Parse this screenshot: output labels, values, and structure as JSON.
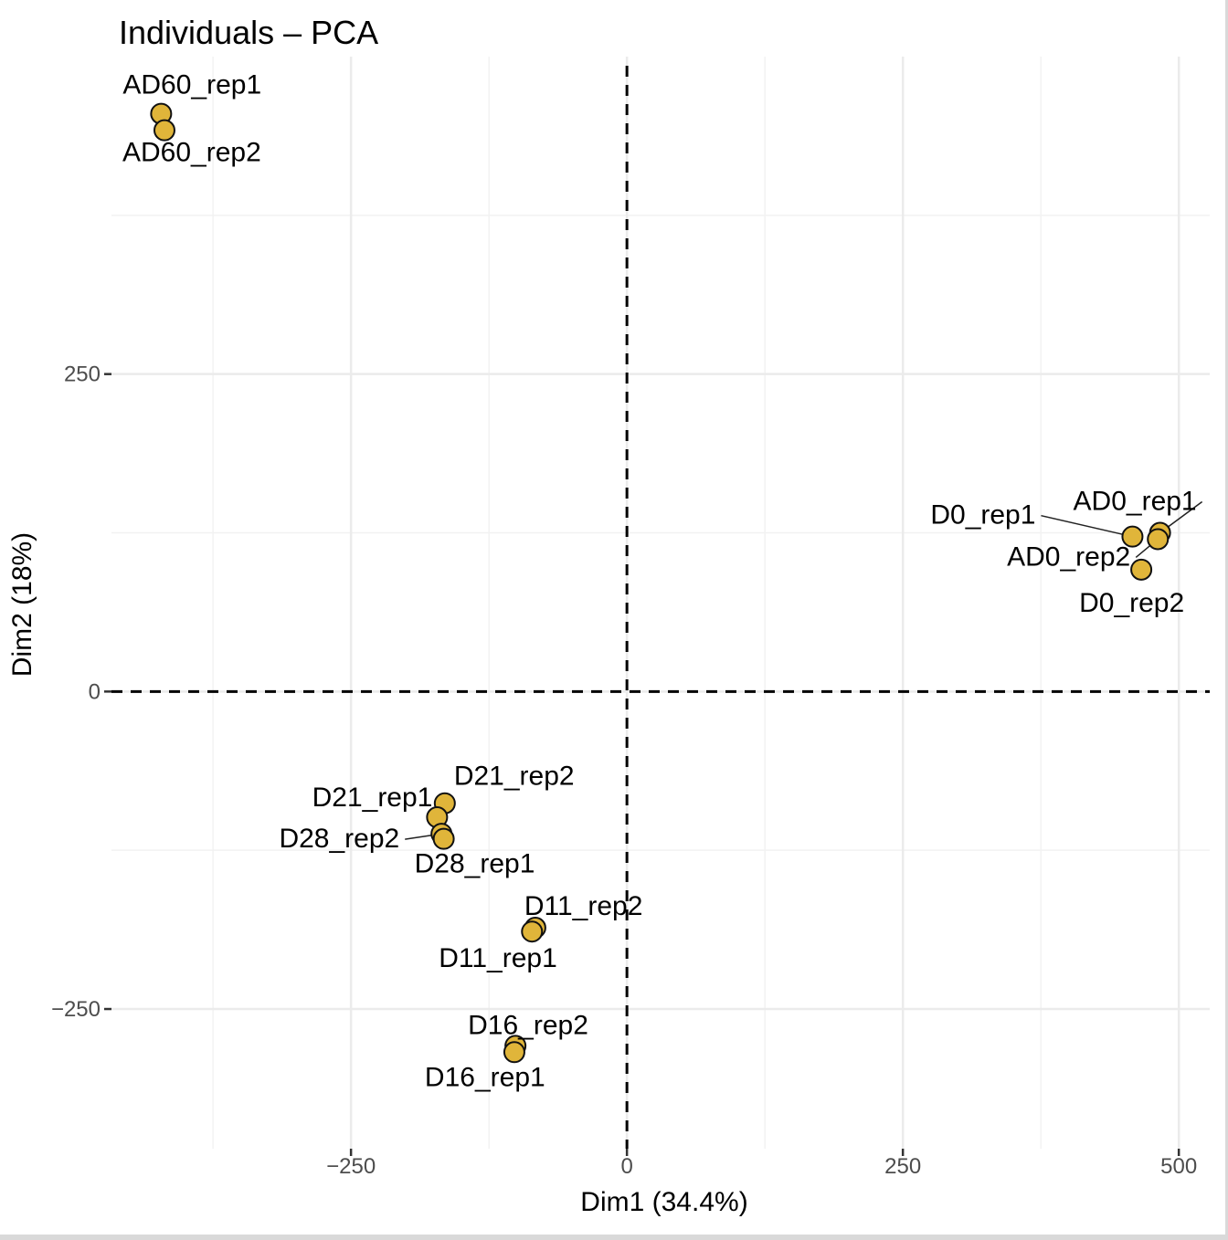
{
  "chart_data": {
    "type": "scatter",
    "title": "Individuals – PCA",
    "xlabel": "Dim1 (34.4%)",
    "ylabel": "Dim2 (18%)",
    "xlim": [
      -467,
      528
    ],
    "ylim": [
      -360,
      500
    ],
    "x_ticks": [
      {
        "value": -250,
        "label": "−250"
      },
      {
        "value": 0,
        "label": "0"
      },
      {
        "value": 250,
        "label": "250"
      },
      {
        "value": 500,
        "label": "500"
      }
    ],
    "y_ticks": [
      {
        "value": -250,
        "label": "−250"
      },
      {
        "value": 0,
        "label": "0"
      },
      {
        "value": 250,
        "label": "250"
      }
    ],
    "minor_x": [
      -375,
      -125,
      125,
      375
    ],
    "minor_y": [
      -125,
      125,
      375
    ],
    "reference_lines": {
      "x": 0,
      "y": 0,
      "style": "dashed"
    },
    "grid": true,
    "point_color": "#e0b53a",
    "points": [
      {
        "name": "AD60_rep1",
        "x": -422,
        "y": 455
      },
      {
        "name": "AD60_rep2",
        "x": -419,
        "y": 442
      },
      {
        "name": "AD0_rep1",
        "x": 483,
        "y": 125
      },
      {
        "name": "D0_rep1",
        "x": 458,
        "y": 122
      },
      {
        "name": "AD0_rep2",
        "x": 481,
        "y": 120
      },
      {
        "name": "D0_rep2",
        "x": 466,
        "y": 96
      },
      {
        "name": "D21_rep2",
        "x": -165,
        "y": -88
      },
      {
        "name": "D21_rep1",
        "x": -172,
        "y": -99
      },
      {
        "name": "D28_rep2",
        "x": -168,
        "y": -112
      },
      {
        "name": "D28_rep1",
        "x": -166,
        "y": -116
      },
      {
        "name": "D11_rep2",
        "x": -83,
        "y": -186
      },
      {
        "name": "D11_rep1",
        "x": -86,
        "y": -189
      },
      {
        "name": "D16_rep2",
        "x": -101,
        "y": -279
      },
      {
        "name": "D16_rep1",
        "x": -102,
        "y": -284
      }
    ]
  }
}
